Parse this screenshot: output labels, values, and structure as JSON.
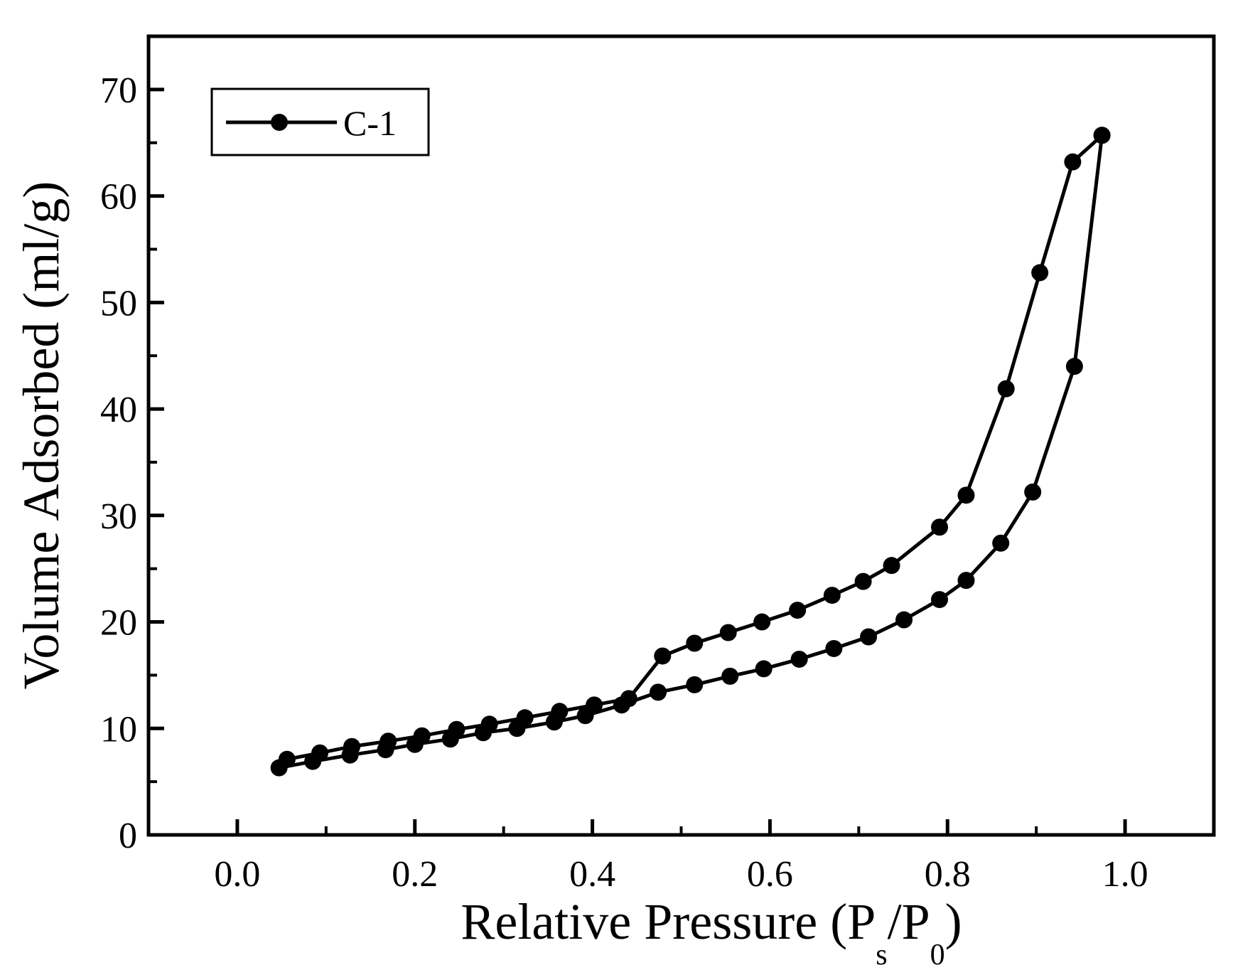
{
  "chart_data": {
    "type": "line",
    "title": "",
    "xlabel": {
      "main": "Relative Pressure (P",
      "sub1": "s",
      "mid": "/P",
      "sub2": "0",
      "end": ")"
    },
    "ylabel": "Volume Adsorbed (ml/g)",
    "xlim": [
      -0.1,
      1.1
    ],
    "ylim": [
      0,
      75
    ],
    "xticks": [
      0.0,
      0.2,
      0.4,
      0.6,
      0.8,
      1.0
    ],
    "xtick_labels": [
      "0.0",
      "0.2",
      "0.4",
      "0.6",
      "0.8",
      "1.0"
    ],
    "yticks": [
      0,
      10,
      20,
      30,
      40,
      50,
      60,
      70
    ],
    "ytick_labels": [
      "0",
      "10",
      "20",
      "30",
      "40",
      "50",
      "60",
      "70"
    ],
    "legend": {
      "label": "C-1",
      "position": "top-left"
    },
    "line_color": "#000000",
    "series": [
      {
        "name": "C-1",
        "segment": "adsorption",
        "x": [
          0.047,
          0.085,
          0.127,
          0.167,
          0.2,
          0.24,
          0.277,
          0.315,
          0.357,
          0.392,
          0.433,
          0.474,
          0.515,
          0.555,
          0.593,
          0.633,
          0.672,
          0.711,
          0.751,
          0.791,
          0.821,
          0.86,
          0.896,
          0.943,
          0.974
        ],
        "y": [
          6.3,
          6.9,
          7.5,
          8.0,
          8.5,
          9.0,
          9.6,
          10.0,
          10.6,
          11.2,
          12.2,
          13.4,
          14.1,
          14.9,
          15.6,
          16.5,
          17.5,
          18.6,
          20.2,
          22.1,
          23.9,
          27.4,
          32.2,
          44.0,
          65.7
        ]
      },
      {
        "name": "C-1",
        "segment": "desorption",
        "x": [
          0.974,
          0.941,
          0.904,
          0.866,
          0.821,
          0.791,
          0.737,
          0.705,
          0.67,
          0.631,
          0.591,
          0.553,
          0.515,
          0.479,
          0.441,
          0.402,
          0.363,
          0.324,
          0.284,
          0.247,
          0.208,
          0.17,
          0.129,
          0.093,
          0.056
        ],
        "y": [
          65.7,
          63.2,
          52.8,
          41.9,
          31.9,
          28.9,
          25.3,
          23.8,
          22.5,
          21.1,
          20.0,
          19.0,
          18.0,
          16.8,
          12.8,
          12.2,
          11.6,
          11.0,
          10.4,
          9.9,
          9.3,
          8.8,
          8.3,
          7.7,
          7.1
        ]
      }
    ]
  }
}
